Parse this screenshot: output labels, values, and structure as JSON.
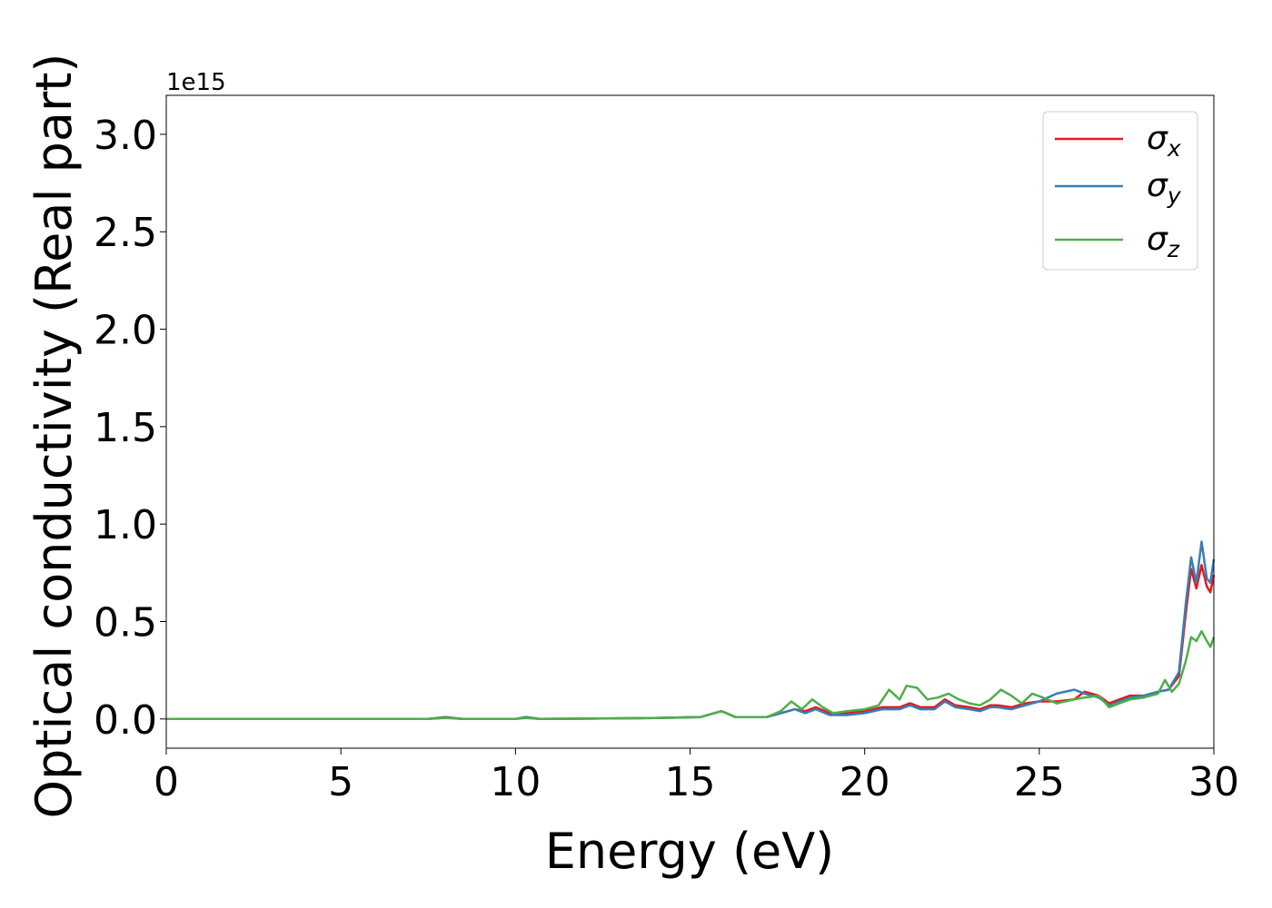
{
  "chart_data": {
    "type": "line",
    "xlabel": "Energy (eV)",
    "ylabel": "Optical conductivity (Real part)",
    "offset_text": "1e15",
    "xlim": [
      0,
      30
    ],
    "ylim": [
      -0.15,
      3.2
    ],
    "xticks": [
      0,
      5,
      10,
      15,
      20,
      25,
      30
    ],
    "xtick_labels": [
      "0",
      "5",
      "10",
      "15",
      "20",
      "25",
      "30"
    ],
    "yticks": [
      0.0,
      0.5,
      1.0,
      1.5,
      2.0,
      2.5,
      3.0
    ],
    "ytick_labels": [
      "0.0",
      "0.5",
      "1.0",
      "1.5",
      "2.0",
      "2.5",
      "3.0"
    ],
    "legend_position": "top-right",
    "grid": false,
    "series": [
      {
        "name": "σx",
        "label_base": "σ",
        "label_sub": "x",
        "color": "#e41a1c",
        "x": [
          0,
          7.5,
          8.0,
          8.5,
          10.0,
          10.3,
          10.7,
          14.0,
          15.3,
          15.9,
          16.3,
          17.2,
          17.6,
          18.0,
          18.3,
          18.6,
          19.0,
          19.5,
          20.0,
          20.5,
          21.0,
          21.3,
          21.6,
          22.0,
          22.3,
          22.6,
          23.0,
          23.3,
          23.6,
          23.8,
          24.2,
          24.6,
          25.0,
          25.5,
          26.0,
          26.3,
          26.7,
          27.0,
          27.3,
          27.6,
          28.0,
          28.4,
          28.7,
          29.0,
          29.2,
          29.35,
          29.5,
          29.65,
          29.8,
          29.9,
          30.0
        ],
        "values": [
          0.0,
          0.0,
          0.01,
          0.0,
          0.0,
          0.01,
          0.0,
          0.005,
          0.01,
          0.04,
          0.01,
          0.01,
          0.03,
          0.05,
          0.04,
          0.06,
          0.03,
          0.03,
          0.04,
          0.06,
          0.06,
          0.08,
          0.06,
          0.06,
          0.1,
          0.07,
          0.06,
          0.05,
          0.07,
          0.07,
          0.06,
          0.08,
          0.09,
          0.09,
          0.1,
          0.14,
          0.12,
          0.08,
          0.1,
          0.12,
          0.12,
          0.14,
          0.15,
          0.22,
          0.55,
          0.77,
          0.67,
          0.79,
          0.68,
          0.65,
          0.74
        ]
      },
      {
        "name": "σy",
        "label_base": "σ",
        "label_sub": "y",
        "color": "#377eb8",
        "x": [
          0,
          7.5,
          8.0,
          8.5,
          10.0,
          10.3,
          10.7,
          14.0,
          15.3,
          15.9,
          16.3,
          17.2,
          17.6,
          18.0,
          18.3,
          18.6,
          19.0,
          19.5,
          20.0,
          20.5,
          21.0,
          21.3,
          21.6,
          22.0,
          22.3,
          22.6,
          23.0,
          23.3,
          23.6,
          23.8,
          24.2,
          24.6,
          25.0,
          25.5,
          26.0,
          26.3,
          26.7,
          27.0,
          27.3,
          27.6,
          28.0,
          28.4,
          28.7,
          29.0,
          29.2,
          29.35,
          29.5,
          29.65,
          29.8,
          29.9,
          30.0
        ],
        "values": [
          0.0,
          0.0,
          0.008,
          0.0,
          0.0,
          0.01,
          0.0,
          0.005,
          0.01,
          0.04,
          0.01,
          0.01,
          0.03,
          0.05,
          0.03,
          0.05,
          0.02,
          0.02,
          0.03,
          0.05,
          0.05,
          0.07,
          0.05,
          0.05,
          0.09,
          0.06,
          0.05,
          0.04,
          0.06,
          0.06,
          0.05,
          0.07,
          0.09,
          0.13,
          0.15,
          0.13,
          0.11,
          0.07,
          0.09,
          0.11,
          0.12,
          0.14,
          0.15,
          0.24,
          0.6,
          0.83,
          0.7,
          0.91,
          0.72,
          0.7,
          0.82
        ]
      },
      {
        "name": "σz",
        "label_base": "σ",
        "label_sub": "z",
        "color": "#4daf4a",
        "x": [
          0,
          7.5,
          8.0,
          8.5,
          10.0,
          10.3,
          10.7,
          14.0,
          15.3,
          15.9,
          16.3,
          17.2,
          17.6,
          17.9,
          18.2,
          18.5,
          18.8,
          19.1,
          19.5,
          20.0,
          20.4,
          20.7,
          21.0,
          21.2,
          21.5,
          21.8,
          22.1,
          22.4,
          22.7,
          23.0,
          23.3,
          23.6,
          23.9,
          24.2,
          24.5,
          24.8,
          25.1,
          25.5,
          26.0,
          26.3,
          26.7,
          27.0,
          27.3,
          27.6,
          28.0,
          28.4,
          28.6,
          28.8,
          29.0,
          29.2,
          29.35,
          29.5,
          29.65,
          29.8,
          29.9,
          30.0
        ],
        "values": [
          0.0,
          0.0,
          0.005,
          0.0,
          0.0,
          0.005,
          0.0,
          0.005,
          0.01,
          0.04,
          0.01,
          0.01,
          0.04,
          0.09,
          0.05,
          0.1,
          0.06,
          0.03,
          0.04,
          0.05,
          0.07,
          0.15,
          0.1,
          0.17,
          0.16,
          0.1,
          0.11,
          0.13,
          0.1,
          0.08,
          0.07,
          0.1,
          0.15,
          0.12,
          0.08,
          0.13,
          0.11,
          0.08,
          0.1,
          0.11,
          0.12,
          0.06,
          0.08,
          0.1,
          0.11,
          0.13,
          0.2,
          0.14,
          0.18,
          0.3,
          0.42,
          0.4,
          0.45,
          0.4,
          0.37,
          0.42
        ]
      }
    ]
  }
}
